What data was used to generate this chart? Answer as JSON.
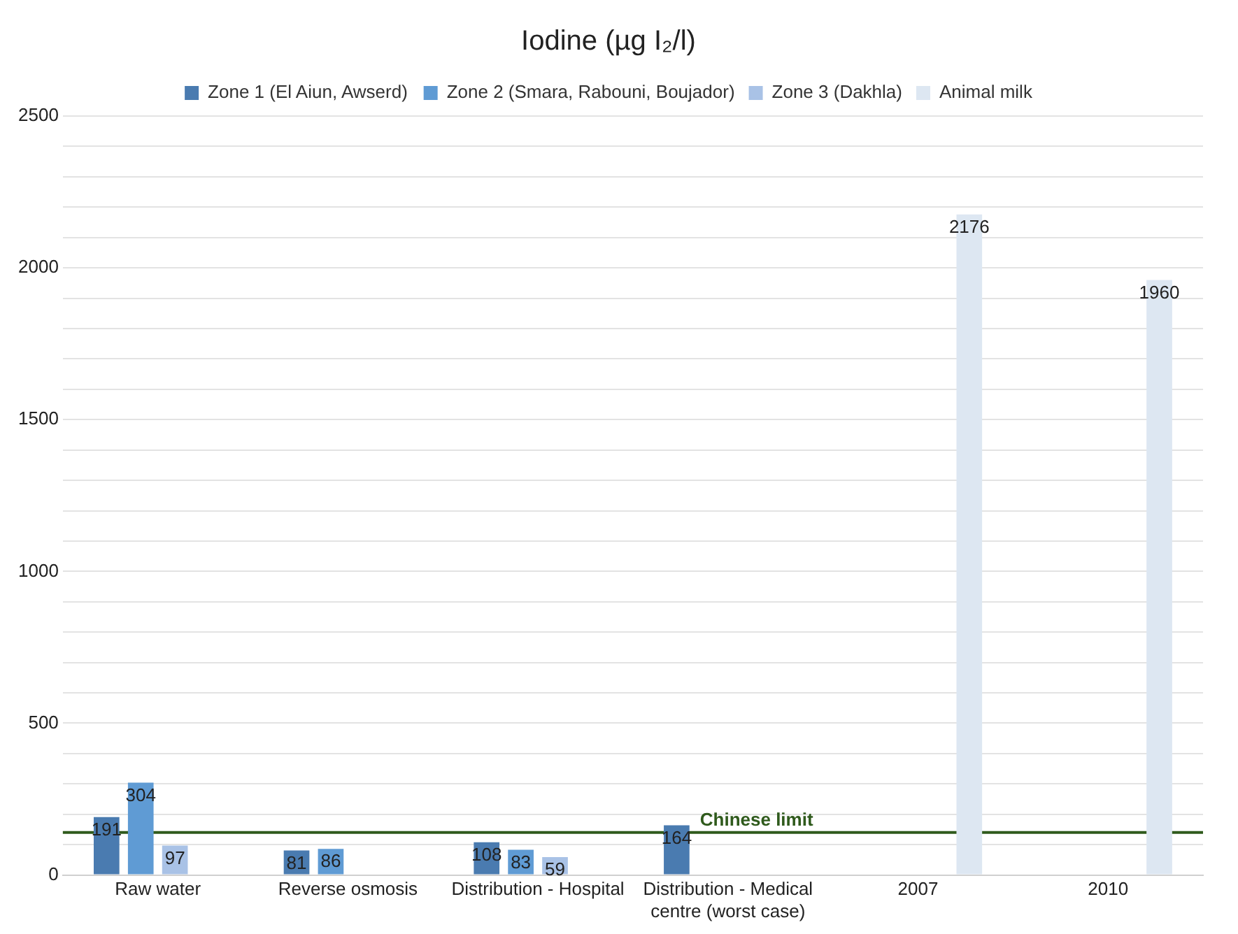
{
  "chart_data": {
    "type": "bar",
    "title": "Iodine (µg I₂/l)",
    "categories": [
      "Raw water",
      "Reverse osmosis",
      "Distribution - Hospital",
      "Distribution - Medical centre (worst case)",
      "2007",
      "2010"
    ],
    "series": [
      {
        "name": "Zone 1 (El Aiun, Awserd)",
        "color": "#4a7bb0",
        "values": [
          191,
          81,
          108,
          164,
          null,
          null
        ]
      },
      {
        "name": "Zone 2 (Smara, Rabouni, Boujador)",
        "color": "#5f9bd4",
        "values": [
          304,
          86,
          83,
          null,
          null,
          null
        ]
      },
      {
        "name": "Zone 3 (Dakhla)",
        "color": "#a9c2e6",
        "values": [
          97,
          null,
          59,
          null,
          null,
          null
        ]
      },
      {
        "name": "Animal milk",
        "color": "#dde7f2",
        "values": [
          null,
          null,
          null,
          null,
          2176,
          1960
        ]
      }
    ],
    "ylim": [
      0,
      2500
    ],
    "yticks": [
      0,
      {
        "value": 100,
        "label": null
      },
      {
        "value": 200,
        "label": null
      },
      {
        "value": 300,
        "label": null
      },
      {
        "value": 400,
        "label": null
      },
      500,
      {
        "value": 600,
        "label": null
      },
      {
        "value": 700,
        "label": null
      },
      {
        "value": 800,
        "label": null
      },
      {
        "value": 900,
        "label": null
      },
      1000,
      {
        "value": 1100,
        "label": null
      },
      {
        "value": 1200,
        "label": null
      },
      {
        "value": 1300,
        "label": null
      },
      {
        "value": 1400,
        "label": null
      },
      1500,
      {
        "value": 1600,
        "label": null
      },
      {
        "value": 1700,
        "label": null
      },
      {
        "value": 1800,
        "label": null
      },
      {
        "value": 1900,
        "label": null
      },
      2000,
      {
        "value": 2100,
        "label": null
      },
      {
        "value": 2200,
        "label": null
      },
      {
        "value": 2300,
        "label": null
      },
      {
        "value": 2400,
        "label": null
      },
      2500
    ],
    "ref_lines": [
      {
        "axis": "y",
        "value": 140,
        "label": "Chinese limit",
        "color": "#2f5a1c"
      }
    ],
    "grid": "y",
    "legend": "top",
    "data_labels": true
  }
}
